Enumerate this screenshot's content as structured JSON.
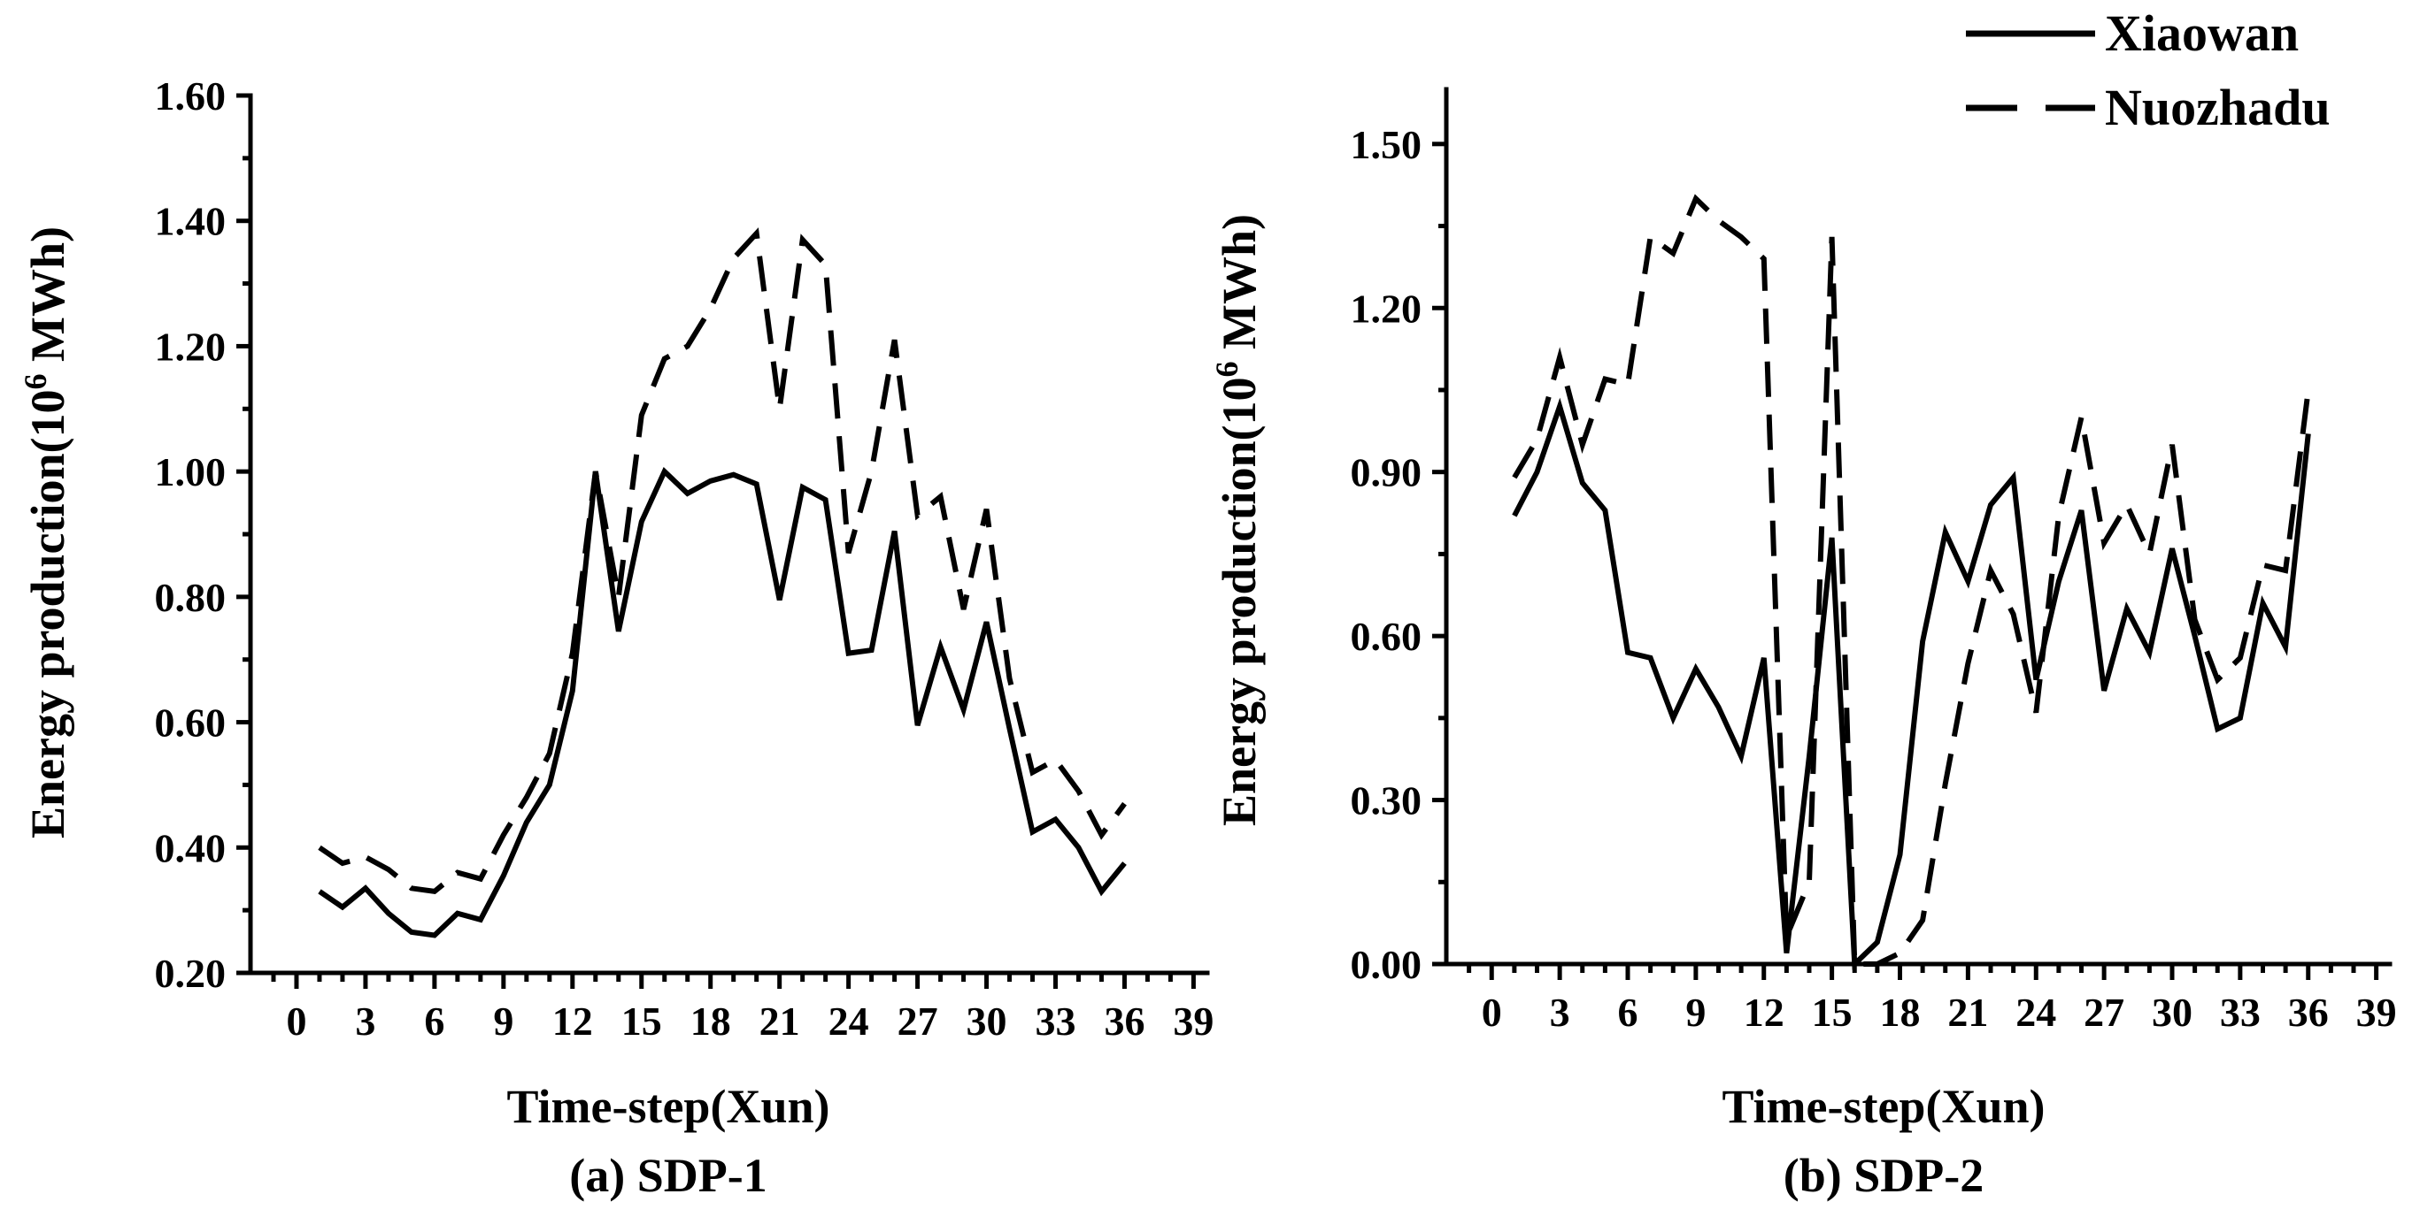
{
  "colors": {
    "ink": "#000000",
    "background": "#ffffff"
  },
  "legend": {
    "entries": [
      {
        "label": "Xiaowan",
        "dashed": false
      },
      {
        "label": "Nuozhadu",
        "dashed": true
      }
    ]
  },
  "chart_data": [
    {
      "type": "line",
      "title": "(a) SDP-1",
      "xlabel": "Time-step(Xun)",
      "ylabel": {
        "base": "Energy production(10",
        "sup": "6",
        "unit": " MWh)"
      },
      "xlim": [
        -2,
        39.6
      ],
      "ylim": [
        0.2,
        1.6
      ],
      "x_ticks": [
        0,
        3,
        6,
        9,
        12,
        15,
        18,
        21,
        24,
        27,
        30,
        33,
        36,
        39
      ],
      "x_tick_labels": [
        "0",
        "3",
        "6",
        "9",
        "12",
        "15",
        "18",
        "21",
        "24",
        "27",
        "30",
        "33",
        "36",
        "39"
      ],
      "y_ticks": [
        0.2,
        0.4,
        0.6,
        0.8,
        1.0,
        1.2,
        1.4,
        1.6
      ],
      "y_tick_labels": [
        "0.20",
        "0.40",
        "0.60",
        "0.80",
        "1.00",
        "1.20",
        "1.40",
        "1.60"
      ],
      "x": [
        1,
        2,
        3,
        4,
        5,
        6,
        7,
        8,
        9,
        10,
        11,
        12,
        13,
        14,
        15,
        16,
        17,
        18,
        19,
        20,
        21,
        22,
        23,
        24,
        25,
        26,
        27,
        28,
        29,
        30,
        31,
        32,
        33,
        34,
        35,
        36
      ],
      "series": [
        {
          "legend_entry": 0,
          "dashed": false,
          "values": [
            0.33,
            0.305,
            0.335,
            0.295,
            0.265,
            0.26,
            0.295,
            0.285,
            0.355,
            0.44,
            0.5,
            0.65,
            1.0,
            0.745,
            0.92,
            1.0,
            0.965,
            0.985,
            0.995,
            0.98,
            0.795,
            0.975,
            0.955,
            0.71,
            0.715,
            0.905,
            0.595,
            0.72,
            0.62,
            0.76,
            0.59,
            0.425,
            0.445,
            0.4,
            0.33,
            0.375
          ]
        },
        {
          "legend_entry": 1,
          "dashed": true,
          "values": [
            0.4,
            0.375,
            0.385,
            0.365,
            0.335,
            0.33,
            0.36,
            0.35,
            0.42,
            0.48,
            0.55,
            0.71,
            1.0,
            0.8,
            1.09,
            1.18,
            1.2,
            1.26,
            1.34,
            1.38,
            1.1,
            1.37,
            1.33,
            0.87,
            1.0,
            1.21,
            0.93,
            0.96,
            0.78,
            0.94,
            0.67,
            0.52,
            0.54,
            0.49,
            0.42,
            0.47
          ]
        }
      ]
    },
    {
      "type": "line",
      "title": "(b) SDP-2",
      "xlabel": "Time-step(Xun)",
      "ylabel": {
        "base": "Energy production(10",
        "sup": "6",
        "unit": " MWh)"
      },
      "xlim": [
        -2,
        39.6
      ],
      "ylim": [
        0.0,
        1.6
      ],
      "x_ticks": [
        0,
        3,
        6,
        9,
        12,
        15,
        18,
        21,
        24,
        27,
        30,
        33,
        36,
        39
      ],
      "x_tick_labels": [
        "0",
        "3",
        "6",
        "9",
        "12",
        "15",
        "18",
        "21",
        "24",
        "27",
        "30",
        "33",
        "36",
        "39"
      ],
      "y_ticks": [
        0.0,
        0.3,
        0.6,
        0.9,
        1.2,
        1.5
      ],
      "y_tick_labels": [
        "0.00",
        "0.30",
        "0.60",
        "0.90",
        "1.20",
        "1.50"
      ],
      "x": [
        1,
        2,
        3,
        4,
        5,
        6,
        7,
        8,
        9,
        10,
        11,
        12,
        13,
        14,
        15,
        16,
        17,
        18,
        19,
        20,
        21,
        22,
        23,
        24,
        25,
        26,
        27,
        28,
        29,
        30,
        31,
        32,
        33,
        34,
        35,
        36
      ],
      "series": [
        {
          "legend_entry": 0,
          "dashed": false,
          "values": [
            0.82,
            0.9,
            1.02,
            0.88,
            0.83,
            0.57,
            0.56,
            0.45,
            0.54,
            0.47,
            0.38,
            0.56,
            0.02,
            0.38,
            0.78,
            0.0,
            0.04,
            0.2,
            0.59,
            0.79,
            0.7,
            0.84,
            0.89,
            0.52,
            0.7,
            0.83,
            0.5,
            0.65,
            0.57,
            0.76,
            0.6,
            0.43,
            0.45,
            0.66,
            0.58,
            0.97
          ]
        },
        {
          "legend_entry": 1,
          "dashed": true,
          "values": [
            0.89,
            0.96,
            1.11,
            0.95,
            1.07,
            1.06,
            1.33,
            1.3,
            1.4,
            1.36,
            1.33,
            1.29,
            0.05,
            0.15,
            1.33,
            0.0,
            0.0,
            0.02,
            0.08,
            0.33,
            0.55,
            0.72,
            0.64,
            0.46,
            0.82,
            1.0,
            0.77,
            0.84,
            0.75,
            0.95,
            0.63,
            0.52,
            0.56,
            0.73,
            0.72,
            1.05
          ]
        }
      ]
    }
  ]
}
